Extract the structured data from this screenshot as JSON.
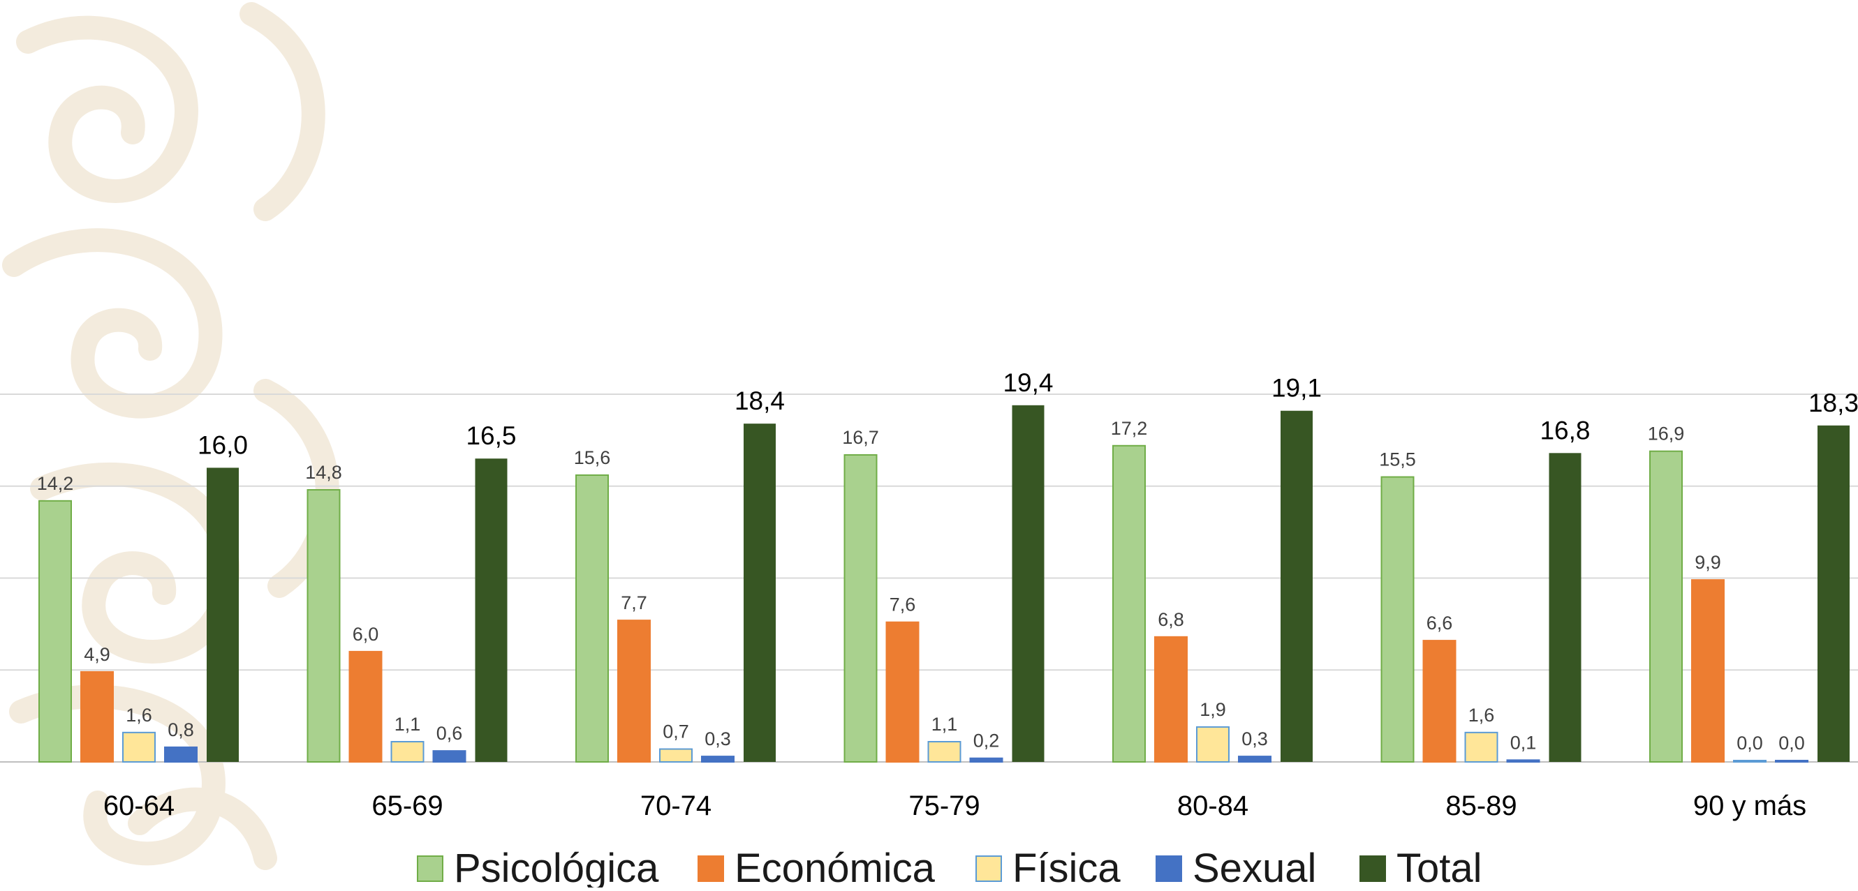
{
  "chart_data": {
    "type": "bar",
    "categories": [
      "60-64",
      "65-69",
      "70-74",
      "75-79",
      "80-84",
      "85-89",
      "90 y más"
    ],
    "series": [
      {
        "name": "Psicológica",
        "color": "#a9d18e",
        "stroke": "#70ad47",
        "values": [
          14.2,
          14.8,
          15.6,
          16.7,
          17.2,
          15.5,
          16.9
        ],
        "labels": [
          "14,2",
          "14,8",
          "15,6",
          "16,7",
          "17,2",
          "15,5",
          "16,9"
        ]
      },
      {
        "name": "Económica",
        "color": "#ed7d31",
        "stroke": "#ed7d31",
        "values": [
          4.9,
          6.0,
          7.7,
          7.6,
          6.8,
          6.6,
          9.9
        ],
        "labels": [
          "4,9",
          "6,0",
          "7,7",
          "7,6",
          "6,8",
          "6,6",
          "9,9"
        ]
      },
      {
        "name": "Física",
        "color": "#ffe699",
        "stroke": "#5b9bd5",
        "values": [
          1.6,
          1.1,
          0.7,
          1.1,
          1.9,
          1.6,
          0.0
        ],
        "labels": [
          "1,6",
          "1,1",
          "0,7",
          "1,1",
          "1,9",
          "1,6",
          "0,0"
        ]
      },
      {
        "name": "Sexual",
        "color": "#4472c4",
        "stroke": "#4472c4",
        "values": [
          0.8,
          0.6,
          0.3,
          0.2,
          0.3,
          0.1,
          0.0
        ],
        "labels": [
          "0,8",
          "0,6",
          "0,3",
          "0,2",
          "0,3",
          "0,1",
          "0,0"
        ]
      },
      {
        "name": "Total",
        "color": "#375623",
        "stroke": "#375623",
        "values": [
          16.0,
          16.5,
          18.4,
          19.4,
          19.1,
          16.8,
          18.3
        ],
        "labels": [
          "16,0",
          "16,5",
          "18,4",
          "19,4",
          "19,1",
          "16,8",
          "18,3"
        ]
      }
    ],
    "ylim": [
      0,
      20
    ],
    "grid": true,
    "legend_position": "bottom"
  }
}
